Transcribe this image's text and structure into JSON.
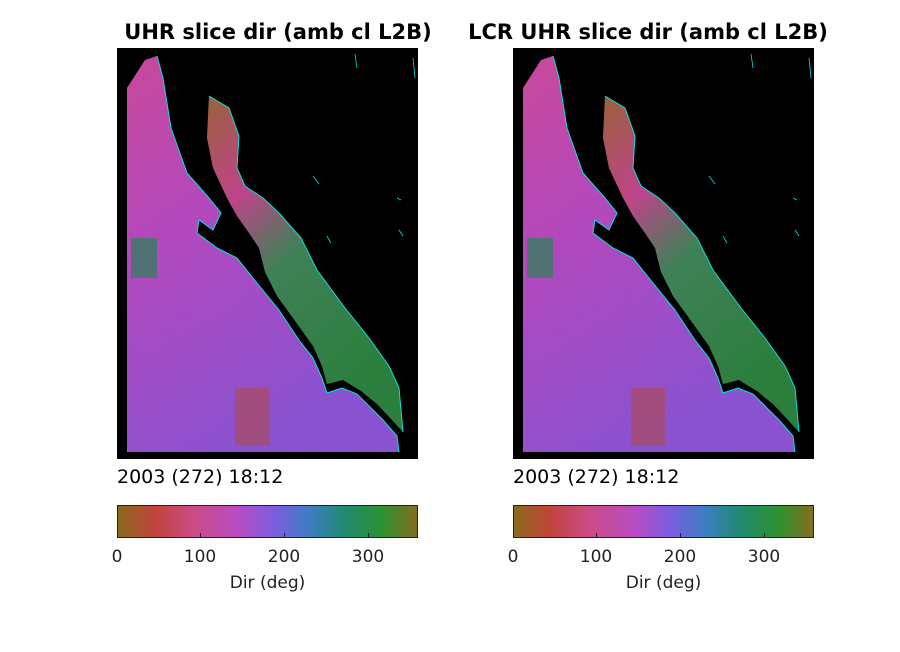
{
  "panels": [
    {
      "title": "UHR slice dir (amb cl L2B)",
      "date": "2003 (272) 18:12",
      "colorbar": {
        "ticks": [
          "0",
          "100",
          "200",
          "300"
        ],
        "label": "Dir (deg)",
        "min": 0,
        "max": 360
      }
    },
    {
      "title": "LCR UHR slice dir (amb cl L2B)",
      "date": "2003 (272) 18:12",
      "colorbar": {
        "ticks": [
          "0",
          "100",
          "200",
          "300"
        ],
        "label": "Dir (deg)",
        "min": 0,
        "max": 360
      }
    }
  ],
  "colors": {
    "map_background": "#000000",
    "coastline": "#00e5e5",
    "colormap": [
      "#8a6a1e",
      "#c0443a",
      "#cc4c86",
      "#b84cc2",
      "#7a5ee0",
      "#3b7ec0",
      "#208a6c",
      "#2e9130",
      "#8a6a1e"
    ]
  }
}
